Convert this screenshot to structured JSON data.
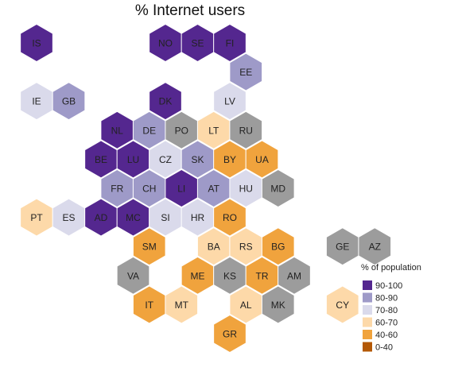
{
  "title": "% Internet users",
  "legend": {
    "title": "% of population",
    "items": [
      {
        "label": "90-100",
        "color": "#54278f"
      },
      {
        "label": "80-90",
        "color": "#9e9ac8"
      },
      {
        "label": "70-80",
        "color": "#dadaeb"
      },
      {
        "label": "60-70",
        "color": "#fdd9a9"
      },
      {
        "label": "40-60",
        "color": "#f0a33d"
      },
      {
        "label": "0-40",
        "color": "#b35806"
      }
    ]
  },
  "no_data_color": "#9c9c9c",
  "countries": [
    {
      "code": "IS",
      "category": "90-100",
      "col": 0,
      "row": 0
    },
    {
      "code": "NO",
      "category": "90-100",
      "col": 4,
      "row": 0
    },
    {
      "code": "SE",
      "category": "90-100",
      "col": 5,
      "row": 0
    },
    {
      "code": "FI",
      "category": "90-100",
      "col": 6,
      "row": 0
    },
    {
      "code": "EE",
      "category": "80-90",
      "col": 6,
      "row": 1
    },
    {
      "code": "IE",
      "category": "70-80",
      "col": 0,
      "row": 2
    },
    {
      "code": "GB",
      "category": "80-90",
      "col": 1,
      "row": 2
    },
    {
      "code": "DK",
      "category": "90-100",
      "col": 4,
      "row": 2
    },
    {
      "code": "LV",
      "category": "70-80",
      "col": 6,
      "row": 2
    },
    {
      "code": "NL",
      "category": "90-100",
      "col": 2,
      "row": 3
    },
    {
      "code": "DE",
      "category": "80-90",
      "col": 3,
      "row": 3
    },
    {
      "code": "PO",
      "category": "no data",
      "col": 4,
      "row": 3
    },
    {
      "code": "LT",
      "category": "60-70",
      "col": 5,
      "row": 3
    },
    {
      "code": "RU",
      "category": "no data",
      "col": 6,
      "row": 3
    },
    {
      "code": "BE",
      "category": "90-100",
      "col": 2,
      "row": 4
    },
    {
      "code": "LU",
      "category": "90-100",
      "col": 3,
      "row": 4
    },
    {
      "code": "CZ",
      "category": "70-80",
      "col": 4,
      "row": 4
    },
    {
      "code": "SK",
      "category": "80-90",
      "col": 5,
      "row": 4
    },
    {
      "code": "BY",
      "category": "40-60",
      "col": 6,
      "row": 4
    },
    {
      "code": "UA",
      "category": "40-60",
      "col": 7,
      "row": 4
    },
    {
      "code": "FR",
      "category": "80-90",
      "col": 2,
      "row": 5
    },
    {
      "code": "CH",
      "category": "80-90",
      "col": 3,
      "row": 5
    },
    {
      "code": "LI",
      "category": "90-100",
      "col": 4,
      "row": 5
    },
    {
      "code": "AT",
      "category": "80-90",
      "col": 5,
      "row": 5
    },
    {
      "code": "HU",
      "category": "70-80",
      "col": 6,
      "row": 5
    },
    {
      "code": "MD",
      "category": "no data",
      "col": 7,
      "row": 5
    },
    {
      "code": "PT",
      "category": "60-70",
      "col": 0,
      "row": 6
    },
    {
      "code": "ES",
      "category": "70-80",
      "col": 1,
      "row": 6
    },
    {
      "code": "AD",
      "category": "90-100",
      "col": 2,
      "row": 6
    },
    {
      "code": "MC",
      "category": "90-100",
      "col": 3,
      "row": 6
    },
    {
      "code": "SI",
      "category": "70-80",
      "col": 4,
      "row": 6
    },
    {
      "code": "HR",
      "category": "70-80",
      "col": 5,
      "row": 6
    },
    {
      "code": "RO",
      "category": "40-60",
      "col": 6,
      "row": 6
    },
    {
      "code": "SM",
      "category": "40-60",
      "col": 3,
      "row": 7
    },
    {
      "code": "BA",
      "category": "60-70",
      "col": 5,
      "row": 7
    },
    {
      "code": "RS",
      "category": "60-70",
      "col": 6,
      "row": 7
    },
    {
      "code": "BG",
      "category": "40-60",
      "col": 7,
      "row": 7
    },
    {
      "code": "GE",
      "category": "no data",
      "col": 9,
      "row": 7
    },
    {
      "code": "AZ",
      "category": "no data",
      "col": 10,
      "row": 7
    },
    {
      "code": "VA",
      "category": "no data",
      "col": 3,
      "row": 8
    },
    {
      "code": "ME",
      "category": "40-60",
      "col": 5,
      "row": 8
    },
    {
      "code": "KS",
      "category": "no data",
      "col": 6,
      "row": 8
    },
    {
      "code": "TR",
      "category": "40-60",
      "col": 7,
      "row": 8
    },
    {
      "code": "AM",
      "category": "no data",
      "col": 8,
      "row": 8
    },
    {
      "code": "IT",
      "category": "40-60",
      "col": 3,
      "row": 9
    },
    {
      "code": "MT",
      "category": "60-70",
      "col": 4,
      "row": 9
    },
    {
      "code": "AL",
      "category": "60-70",
      "col": 6,
      "row": 9
    },
    {
      "code": "MK",
      "category": "no data",
      "col": 7,
      "row": 9
    },
    {
      "code": "CY",
      "category": "60-70",
      "col": 9,
      "row": 9
    },
    {
      "code": "GR",
      "category": "40-60",
      "col": 6,
      "row": 10
    }
  ]
}
